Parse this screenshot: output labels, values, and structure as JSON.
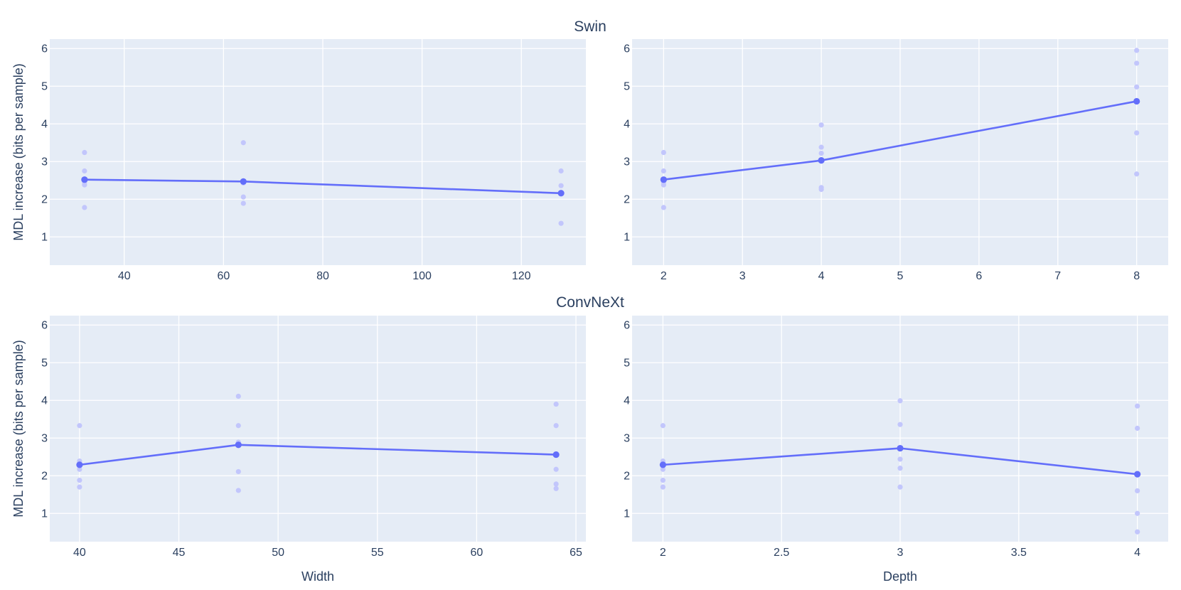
{
  "chart_data": [
    {
      "type": "scatter",
      "group": "Swin",
      "x_name": "Width",
      "xlabel": "",
      "ylabel": "MDL increase (bits per sample)",
      "xlim": [
        25,
        133
      ],
      "ylim": [
        0.25,
        6.25
      ],
      "xticks": [
        40,
        60,
        80,
        100,
        120
      ],
      "yticks": [
        1,
        2,
        3,
        4,
        5,
        6
      ],
      "points_x": [
        32,
        32,
        32,
        32,
        32,
        64,
        64,
        64,
        64,
        64,
        128,
        128,
        128,
        128
      ],
      "points_y": [
        3.24,
        2.75,
        2.45,
        2.38,
        1.78,
        3.5,
        2.46,
        2.43,
        2.06,
        1.89,
        2.75,
        2.36,
        2.17,
        1.36
      ],
      "line_x": [
        32,
        64,
        128
      ],
      "line_y": [
        2.52,
        2.47,
        2.16
      ],
      "grid": true
    },
    {
      "type": "scatter",
      "group": "Swin",
      "x_name": "Depth",
      "xlabel": "",
      "ylabel": "",
      "xlim": [
        1.6,
        8.4
      ],
      "ylim": [
        0.25,
        6.25
      ],
      "xticks": [
        2,
        3,
        4,
        5,
        6,
        7,
        8
      ],
      "yticks": [
        1,
        2,
        3,
        4,
        5,
        6
      ],
      "points_x": [
        2,
        2,
        2,
        2,
        2,
        4,
        4,
        4,
        4,
        4,
        8,
        8,
        8,
        8,
        8
      ],
      "points_y": [
        3.24,
        2.75,
        2.45,
        2.38,
        1.78,
        3.97,
        3.38,
        3.22,
        2.31,
        2.26,
        5.95,
        5.61,
        4.98,
        3.76,
        2.67
      ],
      "line_x": [
        2,
        4,
        8
      ],
      "line_y": [
        2.52,
        3.03,
        4.6
      ],
      "grid": true
    },
    {
      "type": "scatter",
      "group": "ConvNeXt",
      "x_name": "Width",
      "xlabel": "Width",
      "ylabel": "MDL increase (bits per sample)",
      "xlim": [
        38.5,
        65.5
      ],
      "ylim": [
        0.25,
        6.25
      ],
      "xticks": [
        40,
        45,
        50,
        55,
        60,
        65
      ],
      "yticks": [
        1,
        2,
        3,
        4,
        5,
        6
      ],
      "points_x": [
        40,
        40,
        40,
        40,
        40,
        48,
        48,
        48,
        48,
        48,
        64,
        64,
        64,
        64,
        64
      ],
      "points_y": [
        3.33,
        2.39,
        2.17,
        1.88,
        1.7,
        4.11,
        3.33,
        2.89,
        2.11,
        1.61,
        3.9,
        3.33,
        2.17,
        1.78,
        1.66
      ],
      "line_x": [
        40,
        48,
        64
      ],
      "line_y": [
        2.29,
        2.82,
        2.56
      ],
      "grid": true
    },
    {
      "type": "scatter",
      "group": "ConvNeXt",
      "x_name": "Depth",
      "xlabel": "Depth",
      "ylabel": "",
      "xlim": [
        1.87,
        4.13
      ],
      "ylim": [
        0.25,
        6.25
      ],
      "xticks": [
        2,
        2.5,
        3,
        3.5,
        4
      ],
      "yticks": [
        1,
        2,
        3,
        4,
        5,
        6
      ],
      "points_x": [
        2,
        2,
        2,
        2,
        2,
        3,
        3,
        3,
        3,
        3,
        4,
        4,
        4,
        4,
        4,
        4
      ],
      "points_y": [
        3.33,
        2.39,
        2.17,
        1.88,
        1.7,
        3.99,
        3.36,
        2.44,
        2.2,
        1.7,
        3.85,
        3.26,
        1.6,
        1.0,
        0.51,
        2.04
      ],
      "line_x": [
        2,
        3,
        4
      ],
      "line_y": [
        2.29,
        2.73,
        2.04
      ],
      "grid": true
    }
  ],
  "colors": {
    "line": "#636efa",
    "points": "#c2c6fc",
    "plot_bg": "#e5ecf6",
    "grid": "#ffffff",
    "text": "#2a3f5f"
  }
}
